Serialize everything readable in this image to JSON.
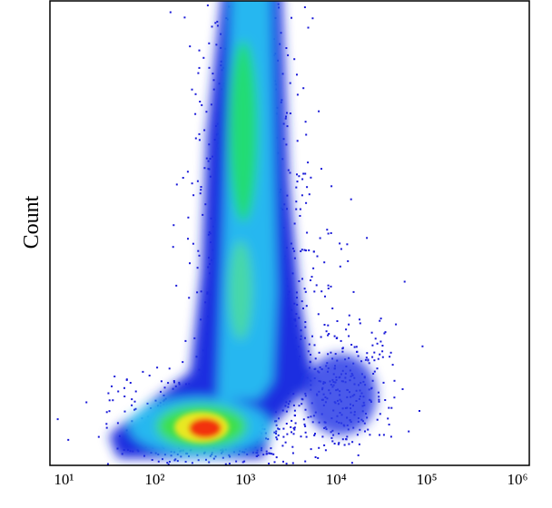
{
  "chart_data": {
    "type": "density",
    "y_label": "Count",
    "x_scale": "log",
    "xlim": [
      7,
      1350000
    ],
    "xticks": [
      {
        "value": 10,
        "label": "10¹"
      },
      {
        "value": 100,
        "label": "10²"
      },
      {
        "value": 1000,
        "label": "10³"
      },
      {
        "value": 10000,
        "label": "10⁴"
      },
      {
        "value": 100000,
        "label": "10⁵"
      },
      {
        "value": 1000000,
        "label": "10⁶"
      }
    ]
  }
}
